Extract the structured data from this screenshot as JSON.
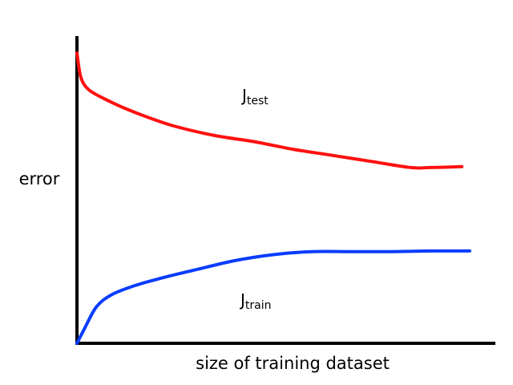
{
  "chart_data": {
    "type": "line",
    "title": "",
    "xlabel": "size of training dataset",
    "ylabel": "error",
    "grid": false,
    "legend": "none",
    "axis_ticks": false,
    "series": [
      {
        "name": "Jtest",
        "label_main": "J",
        "label_sub": "test",
        "color": "#ff1010",
        "x": [
          0,
          0.01,
          0.03,
          0.07,
          0.12,
          0.18,
          0.25,
          0.35,
          0.45,
          0.55,
          0.65,
          0.75,
          0.85,
          0.9,
          0.98
        ],
        "y": [
          0.95,
          0.87,
          0.83,
          0.8,
          0.77,
          0.74,
          0.71,
          0.68,
          0.66,
          0.635,
          0.615,
          0.595,
          0.575,
          0.575,
          0.578
        ]
      },
      {
        "name": "Jtrain",
        "label_main": "J",
        "label_sub": "train",
        "color": "#0a3cff",
        "x": [
          0,
          0.02,
          0.05,
          0.09,
          0.15,
          0.22,
          0.3,
          0.4,
          0.5,
          0.6,
          0.7,
          0.8,
          0.9,
          1.0
        ],
        "y": [
          0.0,
          0.05,
          0.12,
          0.16,
          0.19,
          0.215,
          0.24,
          0.27,
          0.29,
          0.3,
          0.3,
          0.3,
          0.302,
          0.302
        ]
      }
    ],
    "xlim": [
      0,
      1
    ],
    "ylim": [
      0,
      1
    ]
  }
}
